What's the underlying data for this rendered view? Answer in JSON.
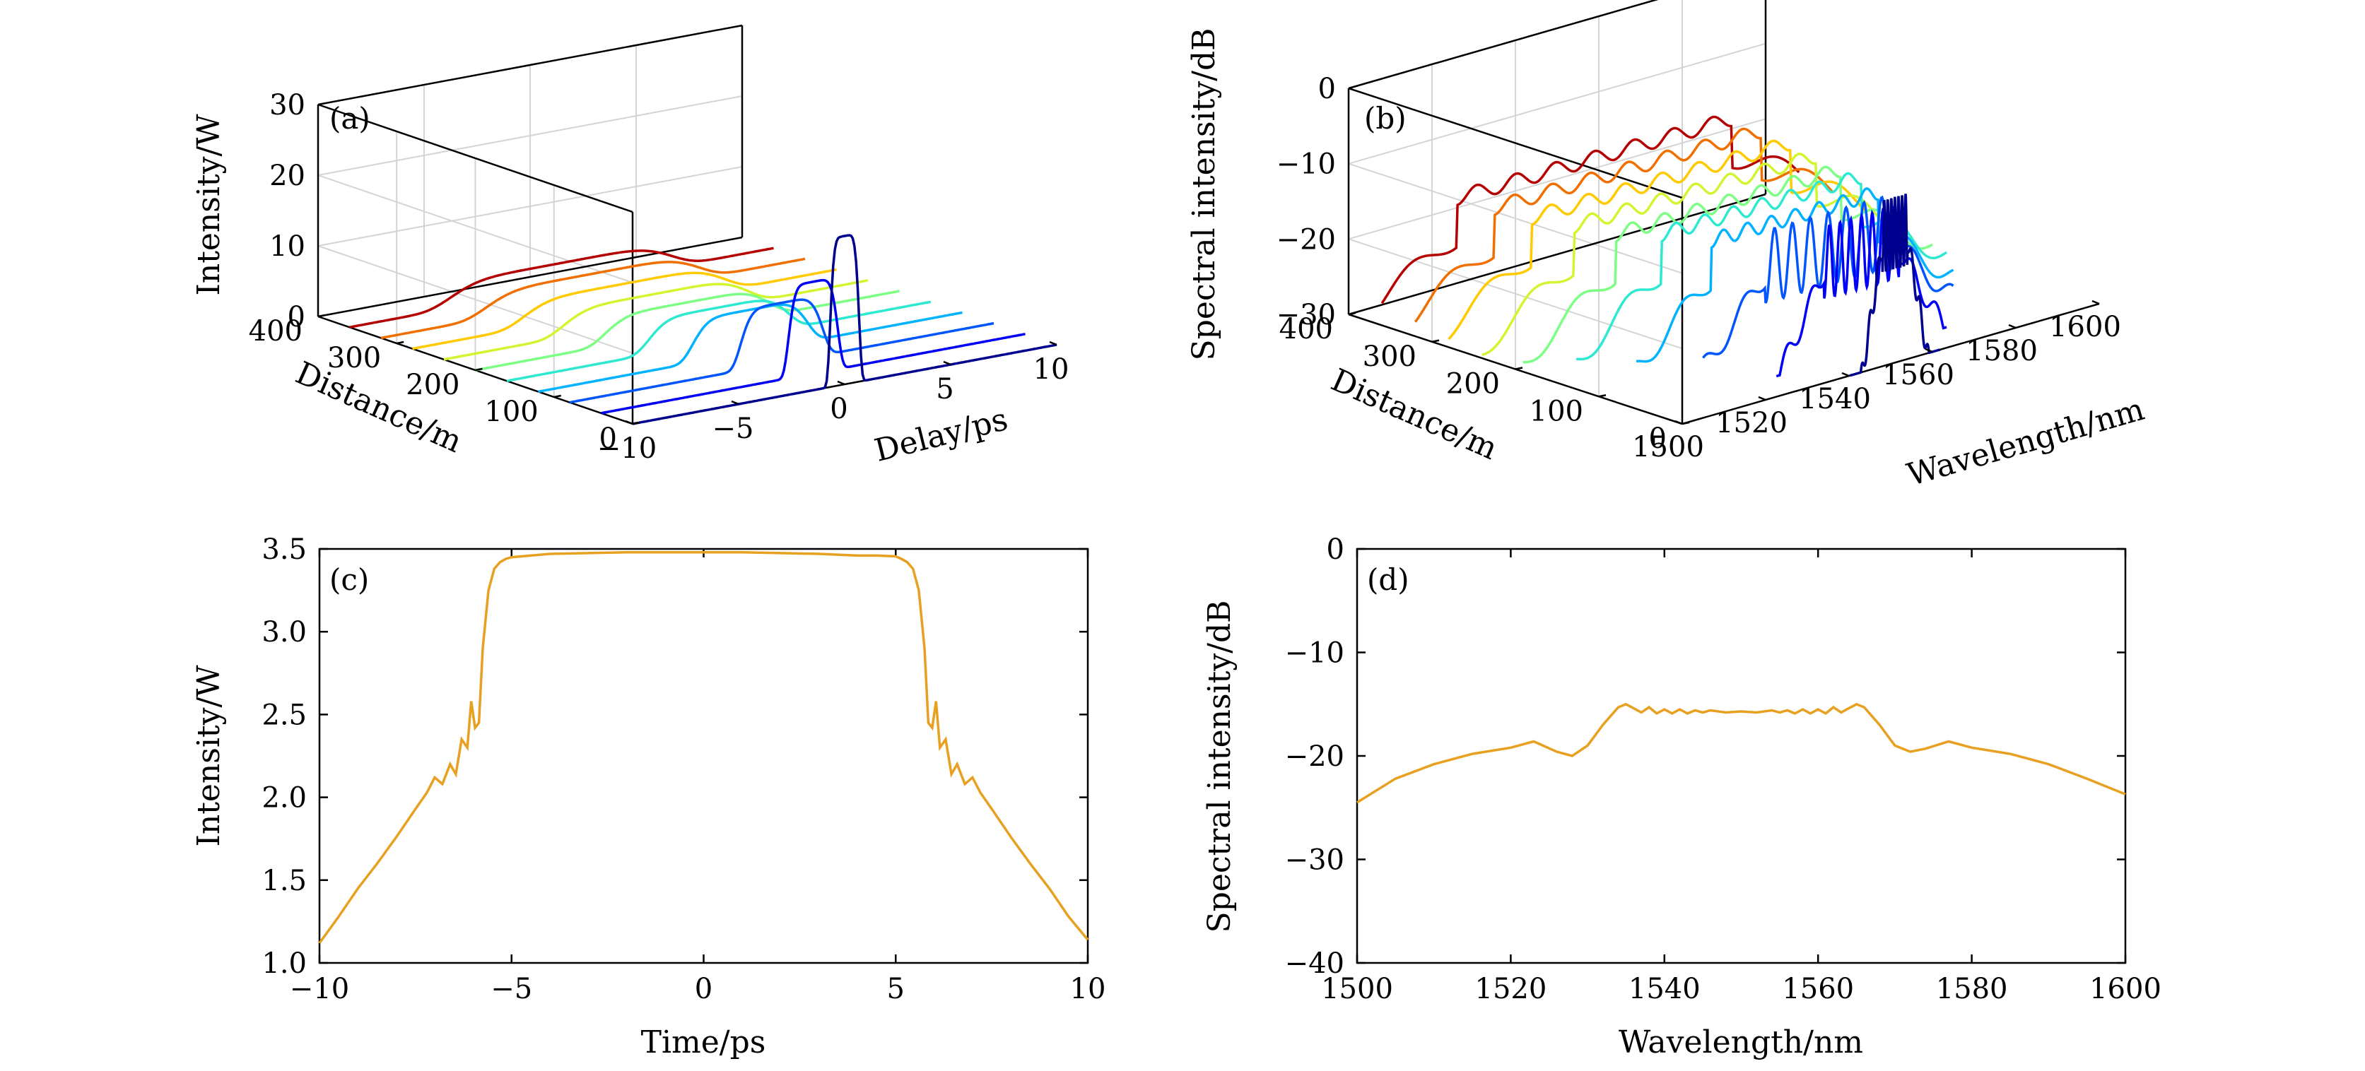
{
  "chart_data": [
    {
      "panel": "(a)",
      "type": "line",
      "projection": "3d-waterfall",
      "xlabel": "Delay/ps",
      "ylabel": "Distance/m",
      "zlabel": "Intensity/W",
      "xlim": [
        -10,
        10
      ],
      "ylim": [
        0,
        400
      ],
      "zlim": [
        0,
        30
      ],
      "x_ticks": [
        "−10",
        "−5",
        "0",
        "5",
        "10"
      ],
      "y_ticks": [
        "0",
        "100",
        "200",
        "300",
        "400"
      ],
      "z_ticks": [
        "0",
        "10",
        "20",
        "30"
      ],
      "grid": true,
      "colormap": [
        "#00008f",
        "#0000ff",
        "#0066ff",
        "#00c8ff",
        "#4dffb3",
        "#b3ff4d",
        "#ffe600",
        "#ff8c00",
        "#e64000",
        "#b40000"
      ],
      "series": [
        {
          "distance": 0,
          "peak": 21.0,
          "halfwidth": 0.7
        },
        {
          "distance": 40,
          "peak": 13.0,
          "halfwidth": 1.2
        },
        {
          "distance": 80,
          "peak": 8.5,
          "halfwidth": 2.0
        },
        {
          "distance": 120,
          "peak": 6.0,
          "halfwidth": 2.8
        },
        {
          "distance": 160,
          "peak": 4.8,
          "halfwidth": 3.4
        },
        {
          "distance": 200,
          "peak": 4.0,
          "halfwidth": 4.0
        },
        {
          "distance": 240,
          "peak": 3.7,
          "halfwidth": 4.5
        },
        {
          "distance": 280,
          "peak": 3.6,
          "halfwidth": 4.9
        },
        {
          "distance": 320,
          "peak": 3.5,
          "halfwidth": 5.2
        },
        {
          "distance": 360,
          "peak": 3.5,
          "halfwidth": 5.4
        }
      ]
    },
    {
      "panel": "(b)",
      "type": "line",
      "projection": "3d-waterfall",
      "xlabel": "Wavelength/nm",
      "ylabel": "Distance/m",
      "zlabel": "Spectral intensity/dB",
      "xlim": [
        1500,
        1600
      ],
      "ylim": [
        0,
        400
      ],
      "zlim": [
        -30,
        0
      ],
      "x_ticks": [
        "1500",
        "1520",
        "1540",
        "1560",
        "1580",
        "1600"
      ],
      "y_ticks": [
        "0",
        "100",
        "200",
        "300",
        "400"
      ],
      "z_ticks": [
        "−30",
        "−20",
        "−10",
        "0"
      ],
      "grid": true,
      "series": [
        {
          "distance": 0,
          "width_nm": 3,
          "peak_db": -8
        },
        {
          "distance": 40,
          "width_nm": 9,
          "peak_db": -12
        },
        {
          "distance": 80,
          "width_nm": 15,
          "peak_db": -13
        },
        {
          "distance": 120,
          "width_nm": 20,
          "peak_db": -14
        },
        {
          "distance": 160,
          "width_nm": 24,
          "peak_db": -14
        },
        {
          "distance": 200,
          "width_nm": 27,
          "peak_db": -15
        },
        {
          "distance": 240,
          "width_nm": 29,
          "peak_db": -15
        },
        {
          "distance": 280,
          "width_nm": 31,
          "peak_db": -15
        },
        {
          "distance": 320,
          "width_nm": 32,
          "peak_db": -15
        },
        {
          "distance": 360,
          "width_nm": 33,
          "peak_db": -15
        }
      ]
    },
    {
      "panel": "(c)",
      "type": "line",
      "xlabel": "Time/ps",
      "ylabel": "Intensity/W",
      "xlim": [
        -10,
        10
      ],
      "ylim": [
        1.0,
        3.5
      ],
      "x_ticks": [
        "−10",
        "−5",
        "0",
        "5",
        "10"
      ],
      "y_ticks": [
        "1.0",
        "1.5",
        "2.0",
        "2.5",
        "3.0",
        "3.5"
      ],
      "grid": false,
      "line_color": "#e8a020",
      "x": [
        -10,
        -9.5,
        -9,
        -8.5,
        -8,
        -7.5,
        -7.2,
        -7,
        -6.8,
        -6.6,
        -6.45,
        -6.3,
        -6.15,
        -6.05,
        -5.95,
        -5.85,
        -5.75,
        -5.6,
        -5.45,
        -5.3,
        -5.15,
        -5,
        -4.5,
        -4,
        -3,
        -2,
        -1,
        0,
        1,
        2,
        3,
        4,
        4.5,
        5,
        5.15,
        5.3,
        5.45,
        5.6,
        5.75,
        5.85,
        5.95,
        6.05,
        6.15,
        6.3,
        6.45,
        6.6,
        6.8,
        7,
        7.2,
        7.5,
        8,
        8.5,
        9,
        9.5,
        10
      ],
      "y": [
        1.12,
        1.28,
        1.45,
        1.6,
        1.76,
        1.93,
        2.03,
        2.12,
        2.08,
        2.2,
        2.14,
        2.35,
        2.3,
        2.58,
        2.42,
        2.45,
        2.9,
        3.25,
        3.38,
        3.42,
        3.44,
        3.45,
        3.46,
        3.47,
        3.475,
        3.48,
        3.48,
        3.48,
        3.48,
        3.475,
        3.47,
        3.46,
        3.46,
        3.455,
        3.44,
        3.42,
        3.38,
        3.25,
        2.9,
        2.45,
        2.42,
        2.58,
        2.3,
        2.35,
        2.14,
        2.2,
        2.08,
        2.12,
        2.03,
        1.93,
        1.76,
        1.6,
        1.45,
        1.28,
        1.14
      ]
    },
    {
      "panel": "(d)",
      "type": "line",
      "xlabel": "Wavelength/nm",
      "ylabel": "Spectral intensity/dB",
      "xlim": [
        1500,
        1600
      ],
      "ylim": [
        -40,
        0
      ],
      "x_ticks": [
        "1500",
        "1520",
        "1540",
        "1560",
        "1580",
        "1600"
      ],
      "y_ticks": [
        "−40",
        "−30",
        "−20",
        "−10",
        "0"
      ],
      "grid": false,
      "line_color": "#e8a020",
      "x": [
        1500,
        1505,
        1510,
        1515,
        1520,
        1523,
        1526,
        1528,
        1530,
        1532,
        1534,
        1535,
        1536,
        1537,
        1538,
        1539,
        1540,
        1541,
        1542,
        1543,
        1544,
        1545,
        1546,
        1548,
        1550,
        1552,
        1554,
        1555,
        1556,
        1557,
        1558,
        1559,
        1560,
        1561,
        1562,
        1563,
        1564,
        1565,
        1566,
        1568,
        1570,
        1572,
        1574,
        1577,
        1580,
        1585,
        1590,
        1595,
        1600
      ],
      "y": [
        -24.5,
        -22.2,
        -20.8,
        -19.8,
        -19.2,
        -18.6,
        -19.6,
        -20.0,
        -19.0,
        -17.0,
        -15.3,
        -15.0,
        -15.4,
        -15.8,
        -15.3,
        -15.9,
        -15.5,
        -15.9,
        -15.5,
        -15.9,
        -15.6,
        -15.8,
        -15.6,
        -15.8,
        -15.7,
        -15.8,
        -15.6,
        -15.8,
        -15.6,
        -15.9,
        -15.5,
        -15.9,
        -15.5,
        -15.9,
        -15.3,
        -15.8,
        -15.4,
        -15.0,
        -15.3,
        -17.0,
        -19.0,
        -19.6,
        -19.3,
        -18.6,
        -19.2,
        -19.8,
        -20.8,
        -22.2,
        -23.7
      ]
    }
  ]
}
